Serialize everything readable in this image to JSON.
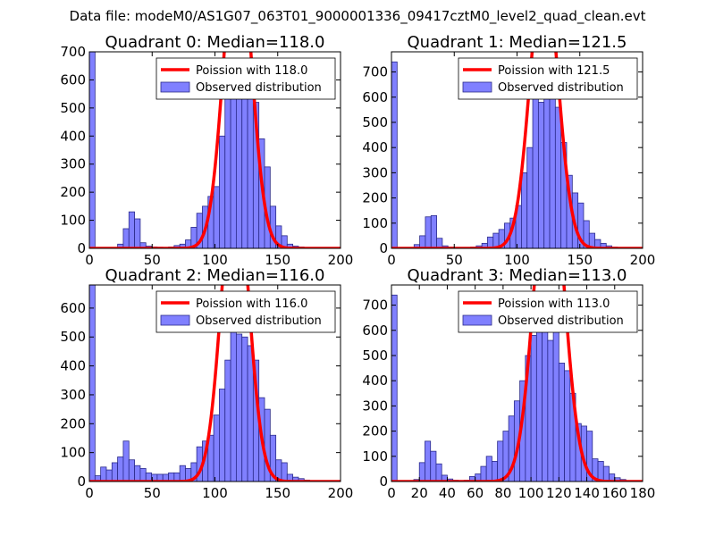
{
  "suptitle": "Data file: modeM0/AS1G07_063T01_9000001336_09417cztM0_level2_quad_clean.evt",
  "colors": {
    "bar_fill": "#8080ff",
    "bar_edge": "#2a2a8a",
    "poisson": "#ff0000"
  },
  "chart_data": [
    {
      "type": "bar",
      "title": "Quadrant 0: Median=118.0",
      "median": 118.0,
      "xlim": [
        0,
        200
      ],
      "ylim": [
        0,
        700
      ],
      "xticks": [
        0,
        50,
        100,
        150,
        200
      ],
      "yticks": [
        0,
        100,
        200,
        300,
        400,
        500,
        600,
        700
      ],
      "bin_width": 4.5,
      "bins_x": [
        0,
        22.5,
        27,
        31.5,
        36,
        40.5,
        45,
        49.5,
        54,
        58.5,
        63,
        67.5,
        72,
        76.5,
        81,
        85.5,
        90,
        94.5,
        99,
        103.5,
        108,
        112.5,
        117,
        121.5,
        126,
        130.5,
        135,
        139.5,
        144,
        148.5,
        153,
        157.5,
        162,
        166.5,
        171,
        175.5
      ],
      "bins_y": [
        700,
        15,
        70,
        130,
        105,
        20,
        8,
        5,
        4,
        3,
        5,
        10,
        15,
        30,
        75,
        125,
        150,
        185,
        220,
        400,
        580,
        630,
        560,
        620,
        640,
        520,
        390,
        290,
        150,
        80,
        45,
        15,
        8,
        5,
        3,
        2
      ],
      "legend": [
        "Poission with 118.0",
        "Observed distribution"
      ]
    },
    {
      "type": "bar",
      "title": "Quadrant 1: Median=121.5",
      "median": 121.5,
      "xlim": [
        0,
        200
      ],
      "ylim": [
        0,
        780
      ],
      "xticks": [
        0,
        50,
        100,
        150,
        200
      ],
      "yticks": [
        0,
        100,
        200,
        300,
        400,
        500,
        600,
        700
      ],
      "bin_width": 4.5,
      "bins_x": [
        0,
        18,
        22.5,
        27,
        31.5,
        36,
        40.5,
        45,
        49.5,
        54,
        58.5,
        63,
        67.5,
        72,
        76.5,
        81,
        85.5,
        90,
        94.5,
        99,
        103.5,
        108,
        112.5,
        117,
        121.5,
        126,
        130.5,
        135,
        139.5,
        144,
        148.5,
        153,
        157.5,
        162,
        166.5,
        171,
        175.5,
        180
      ],
      "bins_y": [
        740,
        15,
        50,
        125,
        130,
        40,
        10,
        5,
        4,
        3,
        3,
        5,
        10,
        20,
        45,
        60,
        75,
        100,
        120,
        170,
        300,
        400,
        600,
        580,
        720,
        680,
        560,
        420,
        290,
        220,
        180,
        110,
        60,
        35,
        20,
        10,
        5,
        2
      ],
      "legend": [
        "Poission with 121.5",
        "Observed distribution"
      ]
    },
    {
      "type": "bar",
      "title": "Quadrant 2: Median=116.0",
      "median": 116.0,
      "xlim": [
        0,
        200
      ],
      "ylim": [
        0,
        680
      ],
      "xticks": [
        0,
        50,
        100,
        150,
        200
      ],
      "yticks": [
        0,
        100,
        200,
        300,
        400,
        500,
        600
      ],
      "bin_width": 4.5,
      "bins_x": [
        0,
        4.5,
        9,
        13.5,
        18,
        22.5,
        27,
        31.5,
        36,
        40.5,
        45,
        49.5,
        54,
        58.5,
        63,
        67.5,
        72,
        76.5,
        81,
        85.5,
        90,
        94.5,
        99,
        103.5,
        108,
        112.5,
        117,
        121.5,
        126,
        130.5,
        135,
        139.5,
        144,
        148.5,
        153,
        157.5,
        162,
        166.5,
        171,
        175.5
      ],
      "bins_y": [
        680,
        20,
        50,
        40,
        65,
        85,
        140,
        75,
        55,
        45,
        30,
        25,
        25,
        25,
        30,
        30,
        55,
        45,
        65,
        120,
        140,
        160,
        230,
        320,
        420,
        600,
        510,
        500,
        470,
        420,
        290,
        250,
        160,
        75,
        65,
        25,
        15,
        10,
        5,
        2
      ],
      "legend": [
        "Poission with 116.0",
        "Observed distribution"
      ]
    },
    {
      "type": "bar",
      "title": "Quadrant 3: Median=113.0",
      "median": 113.0,
      "xlim": [
        0,
        180
      ],
      "ylim": [
        0,
        780
      ],
      "xticks": [
        0,
        20,
        40,
        60,
        80,
        100,
        120,
        140,
        160,
        180
      ],
      "yticks": [
        0,
        100,
        200,
        300,
        400,
        500,
        600,
        700
      ],
      "bin_width": 4,
      "bins_x": [
        0,
        16,
        20,
        24,
        28,
        32,
        36,
        40,
        44,
        48,
        52,
        56,
        60,
        64,
        68,
        72,
        76,
        80,
        84,
        88,
        92,
        96,
        100,
        104,
        108,
        112,
        116,
        120,
        124,
        128,
        132,
        136,
        140,
        144,
        148,
        152,
        156,
        160,
        164,
        168
      ],
      "bins_y": [
        740,
        8,
        75,
        160,
        120,
        70,
        25,
        10,
        5,
        4,
        5,
        20,
        30,
        60,
        100,
        80,
        160,
        200,
        260,
        320,
        400,
        500,
        580,
        630,
        650,
        560,
        600,
        470,
        440,
        350,
        230,
        220,
        200,
        90,
        80,
        60,
        30,
        15,
        8,
        3
      ],
      "legend": [
        "Poission with 113.0",
        "Observed distribution"
      ]
    }
  ]
}
